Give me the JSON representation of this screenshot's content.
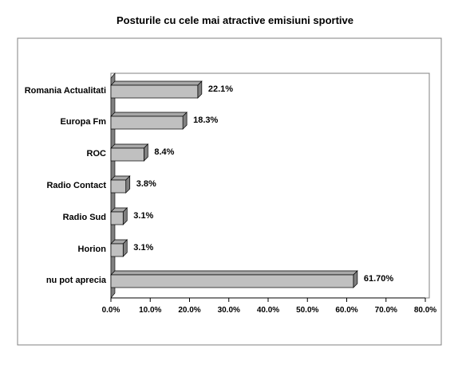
{
  "chart_data": {
    "type": "bar",
    "orientation": "horizontal",
    "style": "3d",
    "title": "Posturile cu cele mai atractive emisiuni sportive",
    "categories": [
      "Romania Actualitati",
      "Europa Fm",
      "ROC",
      "Radio Contact",
      "Radio Sud",
      "Horion",
      "nu pot aprecia"
    ],
    "values": [
      22.1,
      18.3,
      8.4,
      3.8,
      3.1,
      3.1,
      61.7
    ],
    "value_labels": [
      "22.1%",
      "18.3%",
      "8.4%",
      "3.8%",
      "3.1%",
      "3.1%",
      "61.70%"
    ],
    "xlim": [
      0,
      80
    ],
    "x_ticks": [
      "0.0%",
      "10.0%",
      "20.0%",
      "30.0%",
      "40.0%",
      "50.0%",
      "60.0%",
      "70.0%",
      "80.0%"
    ],
    "grid": false,
    "legend": "none",
    "colors": {
      "bar_face": "#c0c0c0",
      "bar_side": "#808080",
      "bar_top": "#a8a8a8",
      "wall": "#808080",
      "frame": "#808080"
    }
  }
}
